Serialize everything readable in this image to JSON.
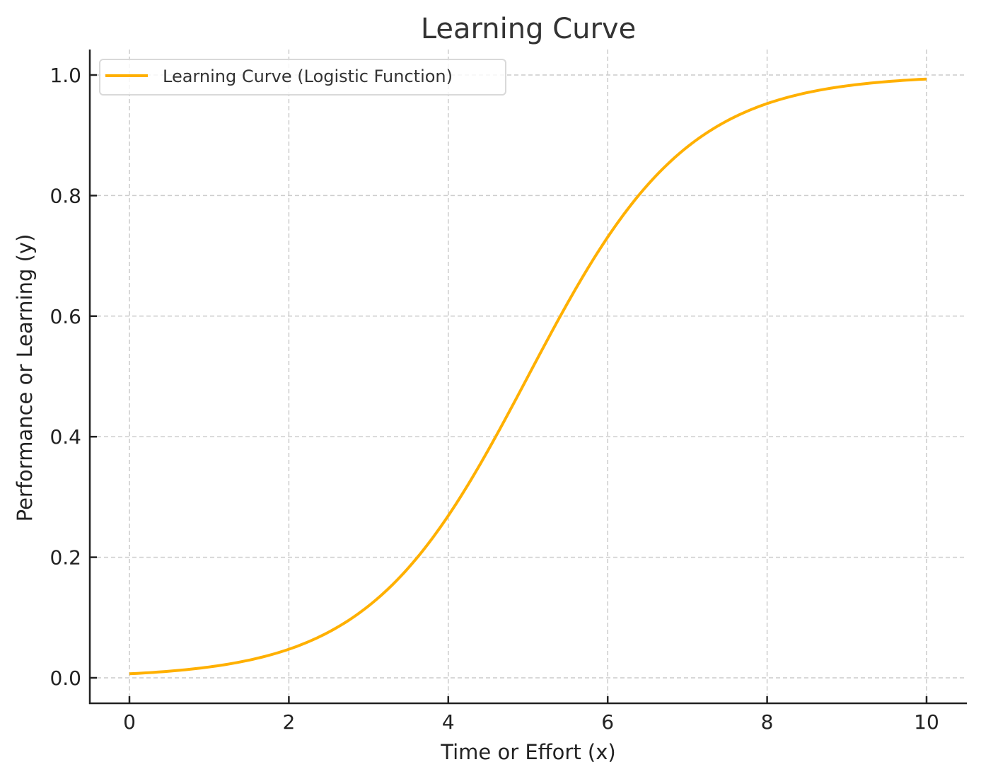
{
  "chart_data": {
    "type": "line",
    "title": "Learning Curve",
    "xlabel": "Time or Effort (x)",
    "ylabel": "Performance or Learning (y)",
    "xlim": [
      -0.5,
      10.5
    ],
    "ylim": [
      -0.043,
      1.043
    ],
    "xticks": [
      0,
      2,
      4,
      6,
      8,
      10
    ],
    "xtick_labels": [
      "0",
      "2",
      "4",
      "6",
      "8",
      "10"
    ],
    "yticks": [
      0.0,
      0.2,
      0.4,
      0.6,
      0.8,
      1.0
    ],
    "ytick_labels": [
      "0.0",
      "0.2",
      "0.4",
      "0.6",
      "0.8",
      "1.0"
    ],
    "grid": true,
    "legend_position": "upper left",
    "series": [
      {
        "name": "Learning Curve (Logistic Function)",
        "color": "#FFB000",
        "function": "1/(1+exp(-(x-5)))",
        "x": [
          0,
          1,
          2,
          3,
          4,
          5,
          6,
          7,
          8,
          9,
          10
        ],
        "values": [
          0.007,
          0.018,
          0.047,
          0.119,
          0.269,
          0.5,
          0.731,
          0.881,
          0.953,
          0.982,
          0.993
        ]
      }
    ]
  },
  "colors": {
    "line": "#FFB000",
    "grid": "#cccccc",
    "axis": "#222222",
    "legend_border": "#d9d9d9"
  }
}
